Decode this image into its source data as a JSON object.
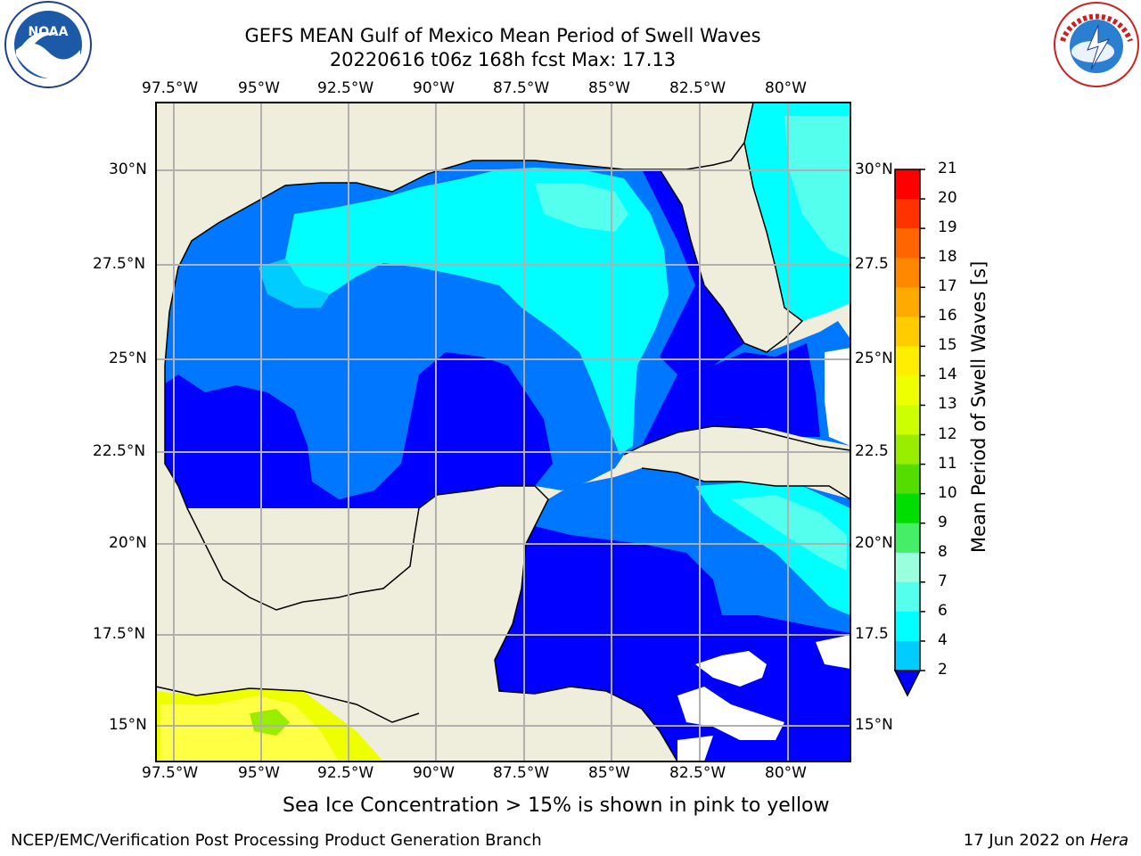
{
  "header": {
    "title_line1": "GEFS MEAN Gulf of Mexico Mean Period of Swell Waves",
    "title_line2": "20220616 t06z 168h fcst   Max: 17.13"
  },
  "logos": {
    "left": "noa-logo-icon",
    "right": "nws-logo-icon"
  },
  "map": {
    "region": "Gulf of Mexico",
    "lon_labels": [
      "97.5°W",
      "95°W",
      "92.5°W",
      "90°W",
      "87.5°W",
      "85°W",
      "82.5°W",
      "80°W"
    ],
    "lat_labels_left": [
      "30°N",
      "27.5°N",
      "25°N",
      "22.5°N",
      "20°N",
      "17.5°N",
      "15°N"
    ],
    "lat_labels_right": [
      "30°N",
      "27.5",
      "25°N",
      "22.5",
      "20°N",
      "17.5",
      "15°N"
    ],
    "land_color": "#efeddb",
    "grid_color": "#b0b0b0"
  },
  "colorbar": {
    "label": "Mean Period of Swell Waves [s]",
    "ticks": [
      "21",
      "20",
      "19",
      "18",
      "17",
      "16",
      "15",
      "14",
      "13",
      "12",
      "11",
      "10",
      "9",
      "8",
      "7",
      "6",
      "4",
      "2"
    ],
    "colors": [
      "#ff0000",
      "#ff3300",
      "#ff6600",
      "#ff8800",
      "#ffaa00",
      "#ffcc00",
      "#ffee00",
      "#eeff00",
      "#ccff00",
      "#99ee00",
      "#55dd00",
      "#00dd00",
      "#44ee66",
      "#99ffdd",
      "#55ffee",
      "#00ffff",
      "#00ccff",
      "#0077ff",
      "#0000ff"
    ]
  },
  "field_colors": {
    "lt2": "#0000ff",
    "p2_4": "#0077ff",
    "p4_6": "#00ccff",
    "p6_7": "#00ffff",
    "p7_8": "#55ffee",
    "ice_yellow": "#eeff00",
    "ice_yellow2": "#ffff44",
    "ice_green": "#99ee00"
  },
  "notes": {
    "sea_ice": "Sea Ice Concentration > 15% is shown in pink to yellow"
  },
  "footer": {
    "left": "NCEP/EMC/Verification Post Processing Product Generation Branch",
    "right_date": "17 Jun 2022 on ",
    "right_host": "Hera"
  }
}
